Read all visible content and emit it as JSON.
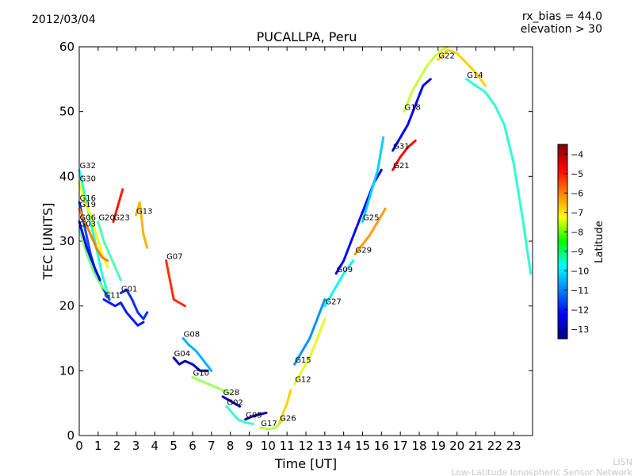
{
  "header": {
    "date": "2012/03/04",
    "rx_bias": "rx_bias = 44.0",
    "elevation": "elevation > 30"
  },
  "footer": {
    "credit_short": "LISN",
    "credit_long": "Low-Latitude Ionospheric Sensor Network"
  },
  "chart_data": {
    "type": "line",
    "title": "PUCALLPA, Peru",
    "xlabel": "Time [UT]",
    "ylabel": "TEC [UNITS]",
    "xlim": [
      0,
      24
    ],
    "ylim": [
      0,
      60
    ],
    "x_ticks": [
      "0",
      "1",
      "2",
      "3",
      "4",
      "5",
      "6",
      "7",
      "8",
      "9",
      "10",
      "11",
      "12",
      "13",
      "14",
      "15",
      "16",
      "17",
      "18",
      "19",
      "20",
      "21",
      "22",
      "23"
    ],
    "y_ticks": [
      "0",
      "10",
      "20",
      "30",
      "40",
      "50",
      "60"
    ],
    "colorbar": {
      "label": "Latitude",
      "range": [
        -13.5,
        -3.5
      ],
      "ticks": [
        "-4",
        "-5",
        "-6",
        "-7",
        "-8",
        "-9",
        "-10",
        "-11",
        "-12",
        "-13"
      ]
    },
    "series": [
      {
        "name": "G32",
        "lat": -9.5,
        "points": [
          [
            0,
            41
          ],
          [
            0.3,
            37
          ],
          [
            0.6,
            33
          ],
          [
            0.9,
            29
          ],
          [
            1.2,
            25
          ],
          [
            1.5,
            22
          ]
        ]
      },
      {
        "name": "G30",
        "lat": -7.2,
        "points": [
          [
            0,
            39
          ],
          [
            0.3,
            36
          ],
          [
            0.6,
            34
          ],
          [
            0.9,
            31
          ],
          [
            1.2,
            28
          ],
          [
            1.5,
            26
          ]
        ]
      },
      {
        "name": "G16",
        "lat": -11.5,
        "points": [
          [
            0,
            36
          ],
          [
            0.3,
            32
          ],
          [
            0.6,
            28
          ],
          [
            0.9,
            25
          ],
          [
            1.2,
            23
          ],
          [
            1.6,
            21
          ]
        ]
      },
      {
        "name": "G19",
        "lat": -6.0,
        "points": [
          [
            0,
            35
          ],
          [
            0.3,
            33
          ],
          [
            0.6,
            31
          ],
          [
            0.9,
            29
          ],
          [
            1.2,
            27.5
          ],
          [
            1.5,
            27
          ]
        ]
      },
      {
        "name": "G03",
        "lat": -8.5,
        "points": [
          [
            0,
            32
          ],
          [
            0.4,
            28
          ],
          [
            0.8,
            25
          ],
          [
            1.2,
            23
          ],
          [
            1.6,
            22
          ]
        ]
      },
      {
        "name": "G06",
        "lat": -12.5,
        "points": [
          [
            0,
            33
          ],
          [
            0.4,
            29
          ],
          [
            0.8,
            26
          ],
          [
            1.1,
            24
          ]
        ]
      },
      {
        "name": "G20",
        "lat": -9.0,
        "points": [
          [
            1.0,
            33
          ],
          [
            1.3,
            30
          ],
          [
            1.6,
            28
          ],
          [
            1.9,
            26
          ],
          [
            2.2,
            24
          ]
        ]
      },
      {
        "name": "G23",
        "lat": -5.0,
        "points": [
          [
            1.8,
            33
          ],
          [
            2.0,
            35
          ],
          [
            2.2,
            37
          ],
          [
            2.3,
            38
          ]
        ]
      },
      {
        "name": "G13",
        "lat": -6.5,
        "points": [
          [
            3.0,
            34
          ],
          [
            3.2,
            36
          ],
          [
            3.4,
            31
          ],
          [
            3.6,
            29
          ]
        ]
      },
      {
        "name": "G11",
        "lat": -12.0,
        "points": [
          [
            1.3,
            21
          ],
          [
            1.6,
            20.5
          ],
          [
            1.9,
            20
          ],
          [
            2.2,
            20.5
          ],
          [
            2.5,
            19
          ],
          [
            2.8,
            18
          ],
          [
            3.1,
            17
          ],
          [
            3.4,
            17.5
          ]
        ]
      },
      {
        "name": "G01",
        "lat": -11.8,
        "points": [
          [
            2.2,
            22
          ],
          [
            2.5,
            22.5
          ],
          [
            2.8,
            21
          ],
          [
            3.1,
            19
          ],
          [
            3.4,
            18
          ],
          [
            3.6,
            19
          ]
        ]
      },
      {
        "name": "G07",
        "lat": -5.2,
        "points": [
          [
            4.6,
            27
          ],
          [
            4.8,
            24
          ],
          [
            5.0,
            21
          ],
          [
            5.3,
            20.5
          ],
          [
            5.6,
            20
          ]
        ]
      },
      {
        "name": "G08",
        "lat": -10.5,
        "points": [
          [
            5.5,
            15
          ],
          [
            5.8,
            14
          ],
          [
            6.2,
            13
          ],
          [
            6.6,
            11.5
          ],
          [
            7.0,
            10
          ]
        ]
      },
      {
        "name": "G04",
        "lat": -13.0,
        "points": [
          [
            5.0,
            12
          ],
          [
            5.3,
            11
          ],
          [
            5.6,
            11.5
          ],
          [
            6.0,
            11
          ],
          [
            6.4,
            10
          ],
          [
            6.8,
            10
          ]
        ]
      },
      {
        "name": "G10",
        "lat": -8.2,
        "points": [
          [
            6.0,
            9
          ],
          [
            6.4,
            8.5
          ],
          [
            6.8,
            8
          ],
          [
            7.2,
            7.5
          ],
          [
            7.6,
            7
          ],
          [
            8.0,
            6.5
          ]
        ]
      },
      {
        "name": "G28",
        "lat": -12.8,
        "points": [
          [
            7.6,
            6
          ],
          [
            7.9,
            5.5
          ],
          [
            8.2,
            5
          ],
          [
            8.5,
            4.5
          ]
        ]
      },
      {
        "name": "G02",
        "lat": -9.2,
        "points": [
          [
            7.8,
            4.5
          ],
          [
            8.1,
            3.5
          ],
          [
            8.4,
            2.5
          ],
          [
            8.8,
            2
          ],
          [
            9.2,
            1.8
          ]
        ]
      },
      {
        "name": "G05",
        "lat": -13.0,
        "points": [
          [
            8.8,
            2.5
          ],
          [
            9.2,
            3
          ],
          [
            9.6,
            3.3
          ],
          [
            9.9,
            3.5
          ]
        ]
      },
      {
        "name": "G17",
        "lat": -8.0,
        "points": [
          [
            9.6,
            1.2
          ],
          [
            10.0,
            1
          ],
          [
            10.4,
            1.2
          ],
          [
            10.8,
            2.5
          ]
        ]
      },
      {
        "name": "G26",
        "lat": -6.8,
        "points": [
          [
            10.6,
            2
          ],
          [
            10.8,
            3.5
          ],
          [
            11.0,
            5
          ],
          [
            11.2,
            7
          ]
        ]
      },
      {
        "name": "G15",
        "lat": -10.8,
        "points": [
          [
            11.4,
            11
          ],
          [
            11.8,
            13
          ],
          [
            12.2,
            15
          ],
          [
            12.6,
            18
          ],
          [
            13.0,
            21
          ]
        ]
      },
      {
        "name": "G12",
        "lat": -7.5,
        "points": [
          [
            11.4,
            8
          ],
          [
            11.8,
            10
          ],
          [
            12.2,
            12
          ],
          [
            12.6,
            15
          ],
          [
            13.0,
            18
          ]
        ]
      },
      {
        "name": "G27",
        "lat": -9.8,
        "points": [
          [
            13.0,
            20
          ],
          [
            13.5,
            22.5
          ],
          [
            14.0,
            25
          ],
          [
            14.5,
            27
          ]
        ]
      },
      {
        "name": "G09",
        "lat": -12.2,
        "points": [
          [
            13.6,
            25
          ],
          [
            14.0,
            27
          ],
          [
            14.4,
            30
          ],
          [
            14.8,
            33
          ],
          [
            15.2,
            36
          ],
          [
            15.6,
            39
          ],
          [
            16.0,
            41
          ]
        ]
      },
      {
        "name": "G29",
        "lat": -6.3,
        "points": [
          [
            14.6,
            28
          ],
          [
            15.0,
            29.5
          ],
          [
            15.4,
            31
          ],
          [
            15.8,
            33
          ],
          [
            16.2,
            35
          ]
        ]
      },
      {
        "name": "G25",
        "lat": -10.2,
        "points": [
          [
            15.0,
            33
          ],
          [
            15.4,
            37
          ],
          [
            15.8,
            41
          ],
          [
            16.1,
            46
          ]
        ]
      },
      {
        "name": "G21",
        "lat": -4.8,
        "points": [
          [
            16.6,
            41
          ],
          [
            17.0,
            43
          ],
          [
            17.4,
            44.5
          ],
          [
            17.8,
            45.5
          ]
        ]
      },
      {
        "name": "G31",
        "lat": -12.4,
        "points": [
          [
            16.6,
            44
          ],
          [
            17.0,
            46
          ],
          [
            17.4,
            48
          ],
          [
            17.8,
            51
          ],
          [
            18.2,
            54
          ],
          [
            18.6,
            55
          ]
        ]
      },
      {
        "name": "G18",
        "lat": -7.8,
        "points": [
          [
            17.2,
            50
          ],
          [
            17.6,
            53
          ],
          [
            18.0,
            55
          ],
          [
            18.4,
            57
          ],
          [
            18.8,
            58.5
          ],
          [
            19.2,
            59.5
          ],
          [
            19.5,
            60
          ]
        ]
      },
      {
        "name": "G22",
        "lat": -6.8,
        "points": [
          [
            19.0,
            58
          ],
          [
            19.5,
            59.5
          ],
          [
            20.0,
            59
          ],
          [
            20.5,
            57.5
          ],
          [
            21.0,
            56
          ],
          [
            21.5,
            54
          ]
        ]
      },
      {
        "name": "G14",
        "lat": -9.3,
        "points": [
          [
            20.5,
            55
          ],
          [
            21.0,
            54
          ],
          [
            21.5,
            53
          ],
          [
            22.0,
            51
          ],
          [
            22.5,
            48
          ],
          [
            23.0,
            42
          ],
          [
            23.5,
            33
          ],
          [
            23.9,
            25
          ]
        ]
      }
    ]
  }
}
